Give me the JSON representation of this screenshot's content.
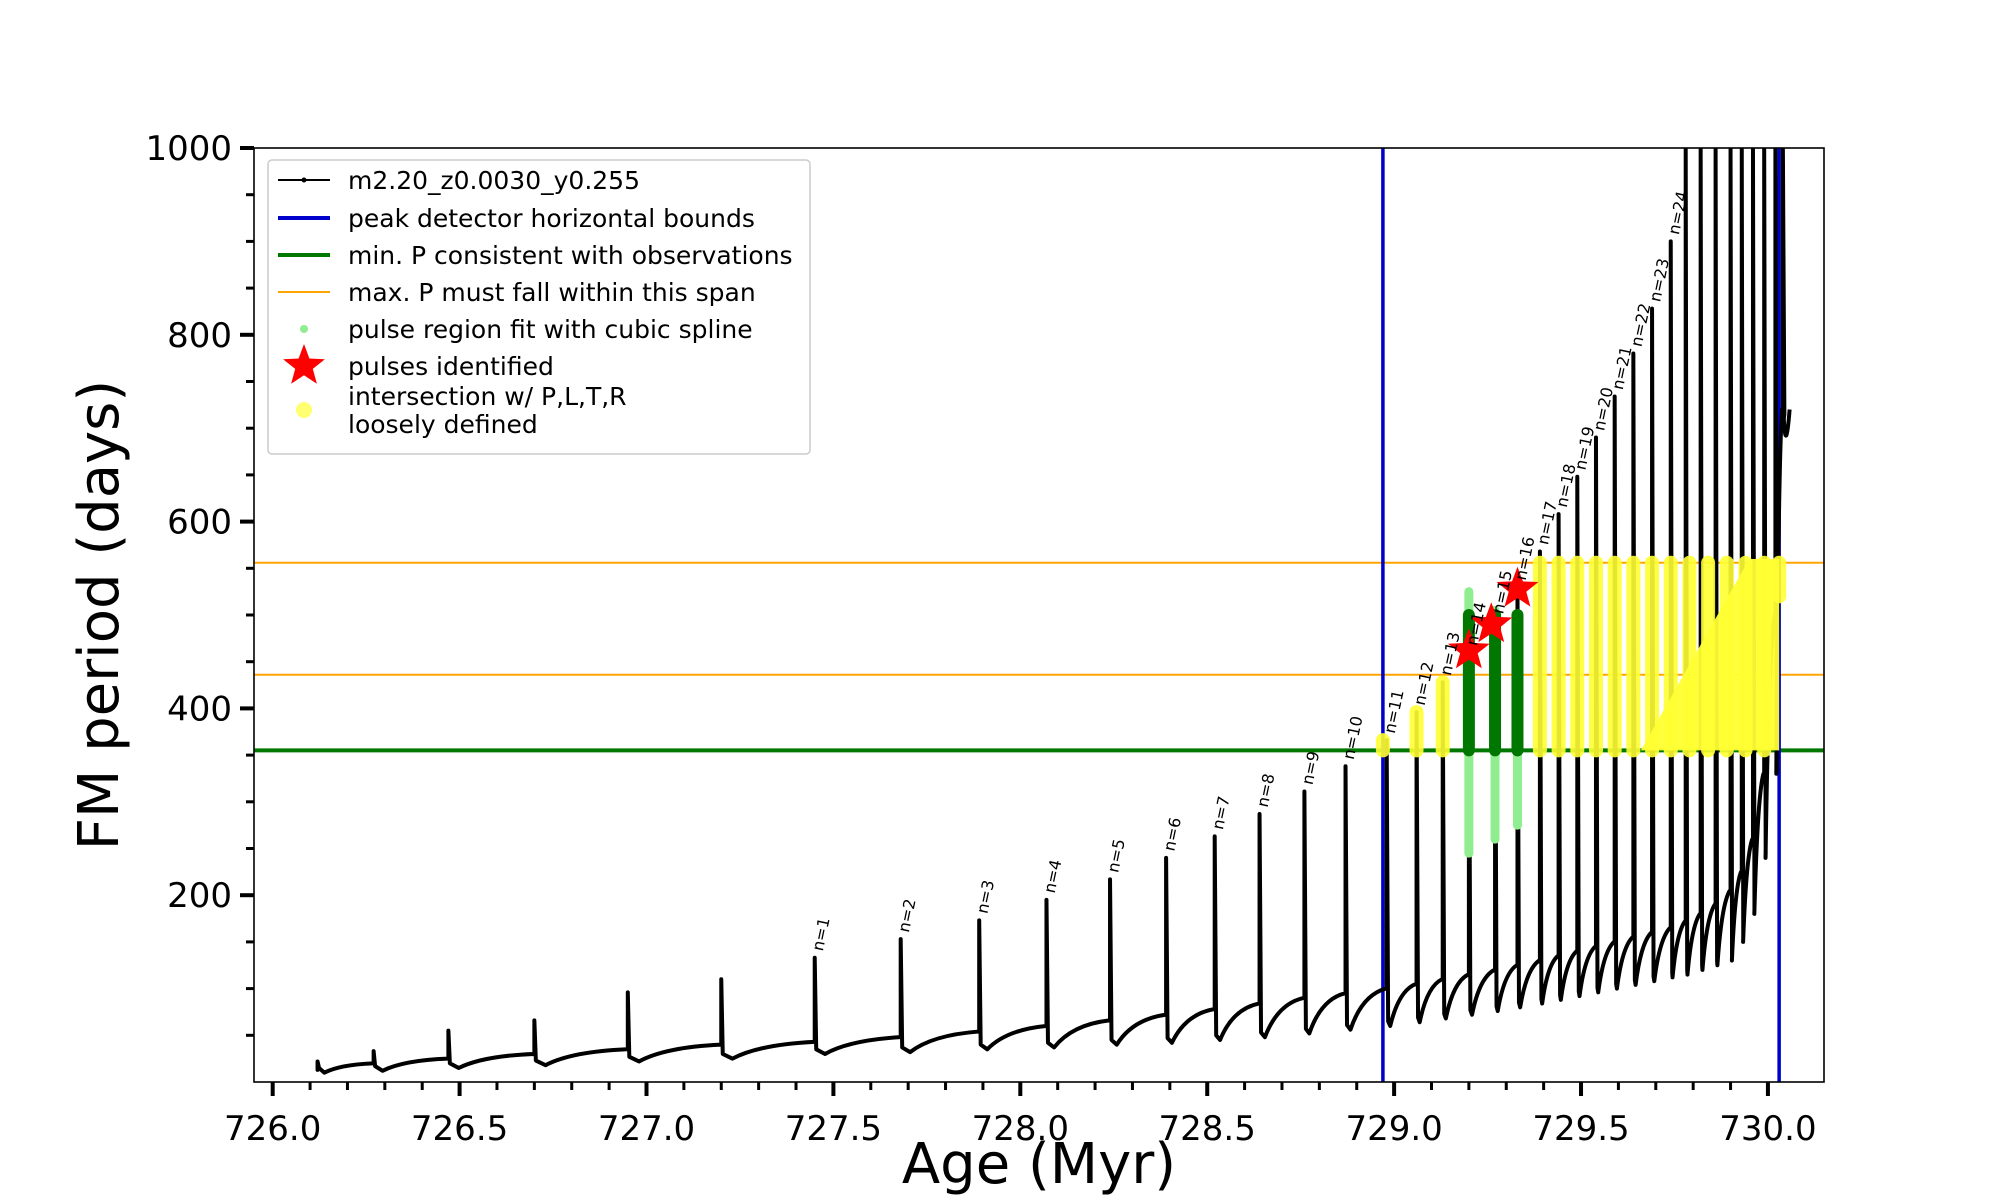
{
  "chart_data": {
    "type": "line",
    "title": "",
    "xlabel": "Age (Myr)",
    "ylabel": "FM period (days)",
    "xlim": [
      725.95,
      730.15
    ],
    "ylim": [
      0,
      1000
    ],
    "x_ticks": [
      {
        "value": 726.0,
        "label": "726.0"
      },
      {
        "value": 726.5,
        "label": "726.5"
      },
      {
        "value": 727.0,
        "label": "727.0"
      },
      {
        "value": 727.5,
        "label": "727.5"
      },
      {
        "value": 728.0,
        "label": "728.0"
      },
      {
        "value": 728.5,
        "label": "728.5"
      },
      {
        "value": 729.0,
        "label": "729.0"
      },
      {
        "value": 729.5,
        "label": "729.5"
      },
      {
        "value": 730.0,
        "label": "730.0"
      }
    ],
    "y_ticks": [
      {
        "value": 200,
        "label": "200"
      },
      {
        "value": 400,
        "label": "400"
      },
      {
        "value": 600,
        "label": "600"
      },
      {
        "value": 800,
        "label": "800"
      },
      {
        "value": 1000,
        "label": "1000"
      }
    ],
    "grid": false,
    "legend_position": "top-left",
    "legend": [
      {
        "label": "m2.20_z0.0030_y0.255",
        "style": "black-line-dots"
      },
      {
        "label": "peak detector horizontal bounds",
        "style": "blue-line"
      },
      {
        "label": "min. P consistent with observations",
        "style": "green-line"
      },
      {
        "label": "max. P must fall within this span",
        "style": "orange-line"
      },
      {
        "label": "pulse region fit with cubic spline",
        "style": "lightgreen-dot"
      },
      {
        "label": "pulses identified",
        "style": "red-star"
      },
      {
        "label": "intersection w/ P,L,T,R\nloosely defined",
        "style": "yellow-dot"
      }
    ],
    "colors": {
      "track": "#000000",
      "bounds": "#0000cc",
      "min_p": "#007700",
      "max_p_span": "#ffa500",
      "spline": "#90ee90",
      "pulses": "#ff0000",
      "intersection": "#ffff33"
    },
    "vertical_bounds_x": [
      728.97,
      730.03
    ],
    "min_p_line_y": 355,
    "max_p_span_y": [
      436,
      556
    ],
    "pulses": [
      {
        "n": "1",
        "x": 727.45,
        "base": 43,
        "peak": 133,
        "dip": 30
      },
      {
        "n": "2",
        "x": 727.68,
        "base": 48,
        "peak": 153,
        "dip": 32
      },
      {
        "n": "3",
        "x": 727.89,
        "base": 54,
        "peak": 173,
        "dip": 35
      },
      {
        "n": "4",
        "x": 728.07,
        "base": 60,
        "peak": 195,
        "dip": 37
      },
      {
        "n": "5",
        "x": 728.24,
        "base": 66,
        "peak": 217,
        "dip": 40
      },
      {
        "n": "6",
        "x": 728.39,
        "base": 72,
        "peak": 240,
        "dip": 42
      },
      {
        "n": "7",
        "x": 728.52,
        "base": 78,
        "peak": 263,
        "dip": 45
      },
      {
        "n": "8",
        "x": 728.64,
        "base": 84,
        "peak": 287,
        "dip": 48
      },
      {
        "n": "9",
        "x": 728.76,
        "base": 90,
        "peak": 311,
        "dip": 52
      },
      {
        "n": "10",
        "x": 728.87,
        "base": 95,
        "peak": 338,
        "dip": 56
      },
      {
        "n": "11",
        "x": 728.98,
        "base": 100,
        "peak": 366,
        "dip": 60
      },
      {
        "n": "12",
        "x": 729.06,
        "base": 105,
        "peak": 396,
        "dip": 64
      },
      {
        "n": "13",
        "x": 729.13,
        "base": 110,
        "peak": 428,
        "dip": 68
      },
      {
        "n": "14",
        "x": 729.2,
        "base": 115,
        "peak": 460,
        "dip": 72
      },
      {
        "n": "15",
        "x": 729.27,
        "base": 120,
        "peak": 494,
        "dip": 76
      },
      {
        "n": "16",
        "x": 729.33,
        "base": 125,
        "peak": 530,
        "dip": 80
      },
      {
        "n": "17",
        "x": 729.39,
        "base": 130,
        "peak": 568,
        "dip": 84
      },
      {
        "n": "18",
        "x": 729.44,
        "base": 135,
        "peak": 608,
        "dip": 88
      },
      {
        "n": "19",
        "x": 729.49,
        "base": 140,
        "peak": 648,
        "dip": 92
      },
      {
        "n": "20",
        "x": 729.54,
        "base": 145,
        "peak": 690,
        "dip": 96
      },
      {
        "n": "21",
        "x": 729.59,
        "base": 150,
        "peak": 734,
        "dip": 100
      },
      {
        "n": "22",
        "x": 729.64,
        "base": 155,
        "peak": 780,
        "dip": 104
      },
      {
        "n": "23",
        "x": 729.69,
        "base": 160,
        "peak": 828,
        "dip": 108
      },
      {
        "n": "24",
        "x": 729.74,
        "base": 165,
        "peak": 900,
        "dip": 112
      }
    ],
    "early_pulses": [
      {
        "x": 726.12,
        "base": 13,
        "peak": 22,
        "dip": 10
      },
      {
        "x": 726.27,
        "base": 20,
        "peak": 33,
        "dip": 12
      },
      {
        "x": 726.47,
        "base": 25,
        "peak": 55,
        "dip": 15
      },
      {
        "x": 726.7,
        "base": 30,
        "peak": 66,
        "dip": 18
      },
      {
        "x": 726.95,
        "base": 35,
        "peak": 96,
        "dip": 22
      },
      {
        "x": 727.2,
        "base": 40,
        "peak": 110,
        "dip": 25
      }
    ],
    "identified_pulses": [
      {
        "x": 729.2,
        "y": 462
      },
      {
        "x": 729.26,
        "y": 490
      },
      {
        "x": 729.33,
        "y": 528
      }
    ],
    "spline_regions": [
      {
        "x": 729.2,
        "y_range": [
          245,
          525
        ]
      },
      {
        "x": 729.27,
        "y_range": [
          260,
          505
        ]
      },
      {
        "x": 729.33,
        "y_range": [
          275,
          500
        ]
      }
    ],
    "fit_regions": [
      {
        "x": 729.2,
        "y_range": [
          355,
          500
        ]
      },
      {
        "x": 729.27,
        "y_range": [
          355,
          500
        ]
      },
      {
        "x": 729.33,
        "y_range": [
          355,
          500
        ]
      }
    ],
    "yellow_regions": [
      {
        "x": 728.97,
        "y_range": [
          355,
          366
        ]
      },
      {
        "x": 729.06,
        "y_range": [
          355,
          396
        ]
      },
      {
        "x": 729.13,
        "y_range": [
          355,
          428
        ]
      },
      {
        "x": 729.39,
        "y_range": [
          355,
          556
        ]
      },
      {
        "x": 729.44,
        "y_range": [
          355,
          556
        ]
      },
      {
        "x": 729.49,
        "y_range": [
          355,
          556
        ]
      },
      {
        "x": 729.54,
        "y_range": [
          355,
          556
        ]
      },
      {
        "x": 729.59,
        "y_range": [
          355,
          556
        ]
      },
      {
        "x": 729.64,
        "y_range": [
          355,
          556
        ]
      },
      {
        "x": 729.69,
        "y_range": [
          355,
          556
        ]
      },
      {
        "x": 729.74,
        "y_range": [
          355,
          556
        ]
      },
      {
        "x": 729.79,
        "y_range": [
          355,
          556
        ]
      },
      {
        "x": 729.84,
        "y_range": [
          355,
          556
        ]
      },
      {
        "x": 729.89,
        "y_range": [
          355,
          556
        ]
      },
      {
        "x": 729.94,
        "y_range": [
          355,
          556
        ]
      },
      {
        "x": 729.99,
        "y_range": [
          355,
          556
        ]
      },
      {
        "x": 730.03,
        "y_range": [
          520,
          556
        ]
      }
    ],
    "late_peaks": [
      {
        "x": 729.78,
        "base": 172,
        "peak": 1000,
        "dip": 115
      },
      {
        "x": 729.82,
        "base": 180,
        "peak": 1000,
        "dip": 120
      },
      {
        "x": 729.86,
        "base": 190,
        "peak": 1000,
        "dip": 125
      },
      {
        "x": 729.9,
        "base": 205,
        "peak": 1000,
        "dip": 130
      },
      {
        "x": 729.93,
        "base": 225,
        "peak": 1000,
        "dip": 150
      },
      {
        "x": 729.96,
        "base": 260,
        "peak": 1000,
        "dip": 180
      },
      {
        "x": 729.99,
        "base": 330,
        "peak": 1000,
        "dip": 240
      },
      {
        "x": 730.02,
        "base": 500,
        "peak": 1000,
        "dip": 330
      },
      {
        "x": 730.04,
        "base": 720,
        "peak": 1000,
        "dip": 710
      }
    ]
  }
}
